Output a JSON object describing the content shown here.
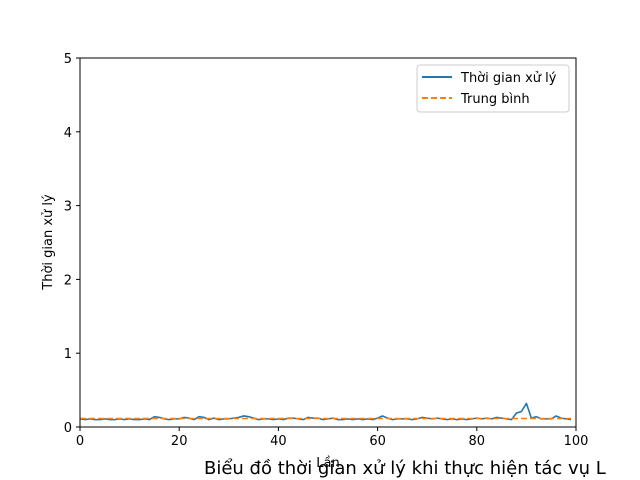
{
  "chart_data": {
    "type": "line",
    "title": "Biểu đồ thời gian xử lý khi thực hiện tác vụ L",
    "xlabel": "Lần",
    "ylabel": "Thời gian xử lý",
    "xlim": [
      0,
      100
    ],
    "ylim": [
      0,
      5
    ],
    "xticks": [
      "0",
      "20",
      "40",
      "60",
      "80",
      "100"
    ],
    "yticks": [
      "0",
      "1",
      "2",
      "3",
      "4",
      "5"
    ],
    "grid": false,
    "legend": "top-right",
    "series": [
      {
        "name": "Thời gian xử lý",
        "style": "solid",
        "color": "#1f77b4",
        "x": [
          0,
          1,
          2,
          3,
          4,
          5,
          6,
          7,
          8,
          9,
          10,
          11,
          12,
          13,
          14,
          15,
          16,
          17,
          18,
          19,
          20,
          21,
          22,
          23,
          24,
          25,
          26,
          27,
          28,
          29,
          30,
          31,
          32,
          33,
          34,
          35,
          36,
          37,
          38,
          39,
          40,
          41,
          42,
          43,
          44,
          45,
          46,
          47,
          48,
          49,
          50,
          51,
          52,
          53,
          54,
          55,
          56,
          57,
          58,
          59,
          60,
          61,
          62,
          63,
          64,
          65,
          66,
          67,
          68,
          69,
          70,
          71,
          72,
          73,
          74,
          75,
          76,
          77,
          78,
          79,
          80,
          81,
          82,
          83,
          84,
          85,
          86,
          87,
          88,
          89,
          90,
          91,
          92,
          93,
          94,
          95,
          96,
          97,
          98,
          99
        ],
        "values": [
          0.11,
          0.1,
          0.11,
          0.1,
          0.1,
          0.11,
          0.1,
          0.1,
          0.11,
          0.1,
          0.11,
          0.1,
          0.1,
          0.11,
          0.1,
          0.14,
          0.13,
          0.11,
          0.1,
          0.11,
          0.11,
          0.13,
          0.12,
          0.1,
          0.14,
          0.13,
          0.1,
          0.12,
          0.1,
          0.11,
          0.11,
          0.12,
          0.13,
          0.15,
          0.14,
          0.12,
          0.1,
          0.11,
          0.11,
          0.1,
          0.11,
          0.1,
          0.12,
          0.12,
          0.11,
          0.1,
          0.13,
          0.12,
          0.12,
          0.1,
          0.11,
          0.12,
          0.1,
          0.1,
          0.11,
          0.1,
          0.11,
          0.1,
          0.11,
          0.1,
          0.12,
          0.15,
          0.12,
          0.1,
          0.11,
          0.11,
          0.11,
          0.1,
          0.11,
          0.13,
          0.12,
          0.11,
          0.12,
          0.11,
          0.1,
          0.11,
          0.1,
          0.11,
          0.1,
          0.11,
          0.12,
          0.11,
          0.12,
          0.11,
          0.13,
          0.12,
          0.11,
          0.1,
          0.19,
          0.21,
          0.32,
          0.12,
          0.14,
          0.11,
          0.11,
          0.11,
          0.15,
          0.12,
          0.11,
          0.1
        ]
      },
      {
        "name": "Trung bình",
        "style": "dashed",
        "color": "#ff7f0e",
        "x": [
          0,
          99
        ],
        "values": [
          0.115,
          0.115
        ]
      }
    ]
  }
}
